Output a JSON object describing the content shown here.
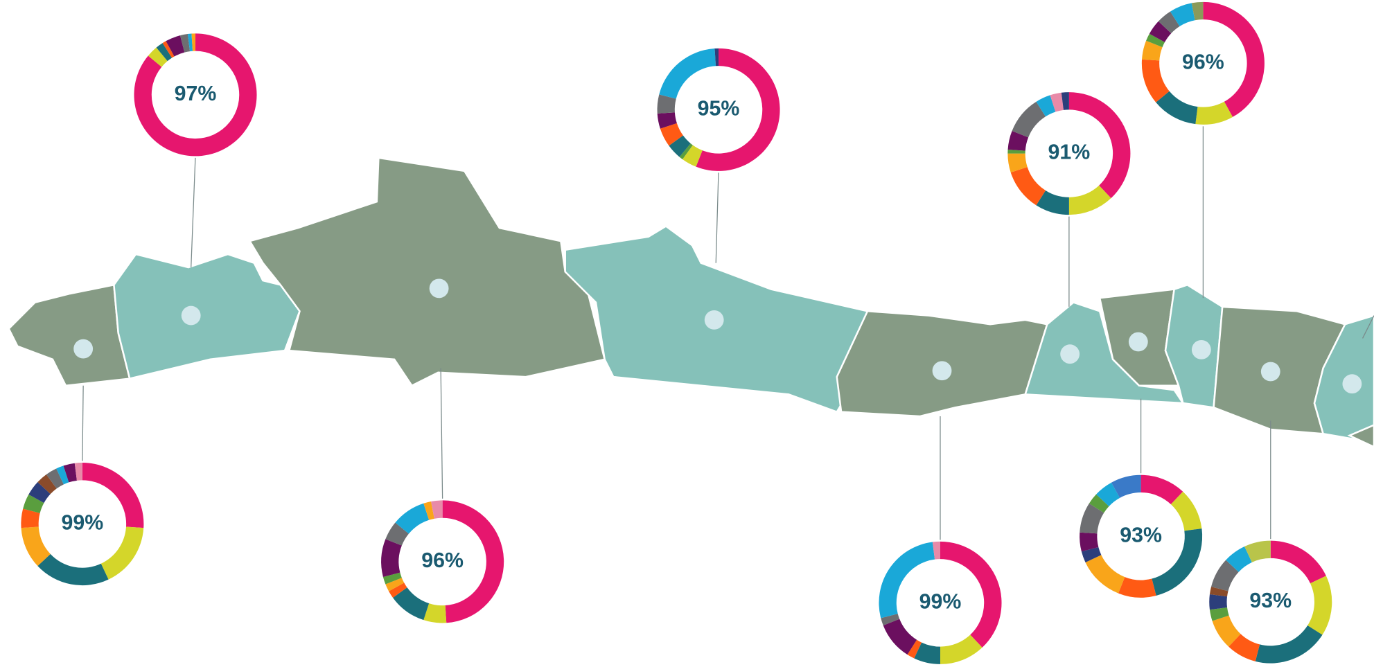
{
  "chart_data": [
    {
      "type": "donut",
      "center_text": "97%",
      "values": [
        86,
        3,
        2,
        1,
        4,
        2,
        1,
        1
      ],
      "colors": [
        "#e6166e",
        "#d4d62a",
        "#1b6f7b",
        "#ff5a14",
        "#6b0f5f",
        "#6d6e71",
        "#1aa8d8",
        "#f9a51a"
      ]
    },
    {
      "type": "donut",
      "center_text": "99%",
      "values": [
        26,
        17,
        20,
        11,
        5,
        4,
        4,
        3,
        3,
        2,
        3,
        2
      ],
      "colors": [
        "#e6166e",
        "#d4d62a",
        "#1b6f7b",
        "#f9a51a",
        "#ff5a14",
        "#5a9e3e",
        "#2c3e7b",
        "#8a4b2a",
        "#6d6e71",
        "#1aa8d8",
        "#6b0f5f",
        "#e88aa8"
      ]
    },
    {
      "type": "donut",
      "center_text": "96%",
      "values": [
        49,
        6,
        10,
        2,
        2,
        2,
        10,
        5,
        9,
        2,
        3
      ],
      "colors": [
        "#e6166e",
        "#d4d62a",
        "#1b6f7b",
        "#ff5a14",
        "#f9a51a",
        "#5a9e3e",
        "#6b0f5f",
        "#6d6e71",
        "#1aa8d8",
        "#f9a51a",
        "#e88aa8"
      ]
    },
    {
      "type": "donut",
      "center_text": "95%",
      "values": [
        56,
        4,
        1,
        4,
        5,
        4,
        5,
        20,
        1
      ],
      "colors": [
        "#e6166e",
        "#d4d62a",
        "#5a9e3e",
        "#1b6f7b",
        "#ff5a14",
        "#6b0f5f",
        "#6d6e71",
        "#1aa8d8",
        "#2c3e7b"
      ]
    },
    {
      "type": "donut",
      "center_text": "91%",
      "values": [
        38,
        12,
        9,
        11,
        5,
        1,
        5,
        10,
        4,
        3,
        2
      ],
      "colors": [
        "#e6166e",
        "#d4d62a",
        "#1b6f7b",
        "#ff5a14",
        "#f9a51a",
        "#5a9e3e",
        "#6b0f5f",
        "#6d6e71",
        "#1aa8d8",
        "#e88aa8",
        "#2c3e7b"
      ]
    },
    {
      "type": "donut",
      "center_text": "96%",
      "values": [
        42,
        10,
        12,
        12,
        5,
        2,
        4,
        4,
        6,
        3
      ],
      "colors": [
        "#e6166e",
        "#d4d62a",
        "#1b6f7b",
        "#ff5a14",
        "#f9a51a",
        "#5a9e3e",
        "#6b0f5f",
        "#6d6e71",
        "#1aa8d8",
        "#8a9a5a"
      ]
    },
    {
      "type": "donut",
      "center_text": "99%",
      "values": [
        38,
        12,
        7,
        2,
        10,
        2,
        27,
        2
      ],
      "colors": [
        "#e6166e",
        "#d4d62a",
        "#1b6f7b",
        "#ff5a14",
        "#6b0f5f",
        "#6d6e71",
        "#1aa8d8",
        "#e88aa8"
      ]
    },
    {
      "type": "donut",
      "center_text": "93%",
      "values": [
        12,
        11,
        23,
        10,
        12,
        3,
        5,
        8,
        3,
        5,
        8
      ],
      "colors": [
        "#e6166e",
        "#d4d62a",
        "#1b6f7b",
        "#ff5a14",
        "#f9a51a",
        "#2c3e7b",
        "#6b0f5f",
        "#6d6e71",
        "#5a9e3e",
        "#1aa8d8",
        "#3a7ac8"
      ]
    },
    {
      "type": "donut",
      "center_text": "93%",
      "values": [
        18,
        16,
        20,
        8,
        8,
        3,
        4,
        2,
        8,
        6,
        7
      ],
      "colors": [
        "#e6166e",
        "#d4d62a",
        "#1b6f7b",
        "#ff5a14",
        "#f9a51a",
        "#5a9e3e",
        "#2c3e7b",
        "#8a4b2a",
        "#6d6e71",
        "#1aa8d8",
        "#b9c44a"
      ]
    }
  ]
}
